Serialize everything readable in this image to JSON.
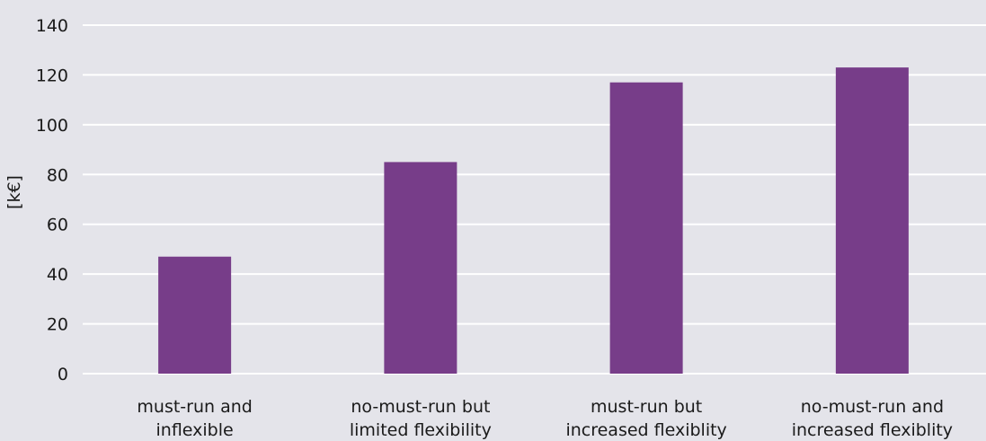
{
  "colors": {
    "background": "#e4e4ea",
    "bar": "#773d89",
    "grid": "#ffffff",
    "text": "#1a1a1a"
  },
  "chart_data": {
    "type": "bar",
    "categories": [
      [
        "must-run and",
        "inflexible"
      ],
      [
        "no-must-run but",
        "limited flexibility"
      ],
      [
        "must-run but",
        "increased flexiblity"
      ],
      [
        "no-must-run and",
        "increased flexiblity"
      ]
    ],
    "values": [
      47,
      85,
      117,
      123
    ],
    "xlabel": "",
    "ylabel": "[k€]",
    "ylim": [
      0,
      140
    ],
    "yticks": [
      0,
      20,
      40,
      60,
      80,
      100,
      120,
      140
    ],
    "grid": true,
    "legend": "none"
  }
}
